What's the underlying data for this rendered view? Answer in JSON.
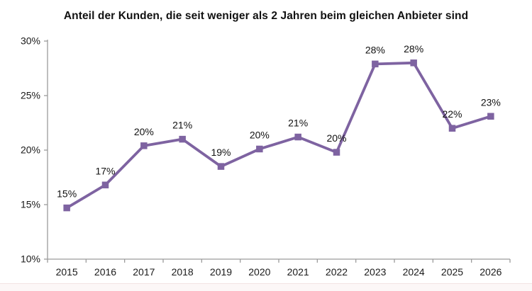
{
  "header": {
    "title": "Anteil der Kunden, die seit weniger als 2 Jahren beim gleichen Anbieter sind"
  },
  "chart_data": {
    "type": "line",
    "title": "Anteil der Kunden, die seit weniger als 2 Jahren beim gleichen Anbieter sind",
    "categories": [
      "2015",
      "2016",
      "2017",
      "2018",
      "2019",
      "2020",
      "2021",
      "2022",
      "2023",
      "2024",
      "2025",
      "2026"
    ],
    "values": [
      15,
      17,
      20,
      21,
      19,
      20,
      21,
      20,
      28,
      28,
      22,
      23
    ],
    "data_labels": [
      "15%",
      "17%",
      "20%",
      "21%",
      "19%",
      "20%",
      "21%",
      "20%",
      "28%",
      "28%",
      "22%",
      "23%"
    ],
    "plotted_values": [
      14.7,
      16.8,
      20.4,
      21.0,
      18.5,
      20.1,
      21.2,
      19.8,
      27.9,
      28.0,
      22.0,
      23.1
    ],
    "xlabel": "",
    "ylabel": "",
    "ylim": [
      10,
      30
    ],
    "y_ticks": [
      {
        "value": 10,
        "label": "10%"
      },
      {
        "value": 15,
        "label": "15%"
      },
      {
        "value": 20,
        "label": "20%"
      },
      {
        "value": 25,
        "label": "25%"
      },
      {
        "value": 30,
        "label": "30%"
      }
    ],
    "grid": false,
    "legend": "none",
    "marker": "square",
    "colors": {
      "series": "#7E63A1",
      "axis": "#9C9C9C",
      "tick_text": "#1A1A1A",
      "label_text": "#111111",
      "background": "#FFFFFF",
      "footer_bg": "#FCF7F7",
      "footer_line": "#F3E3E3"
    }
  }
}
